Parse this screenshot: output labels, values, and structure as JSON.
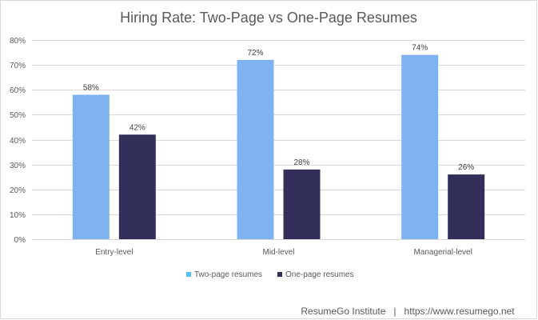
{
  "chart_data": {
    "type": "bar",
    "title": "Hiring Rate: Two-Page vs One-Page Resumes",
    "xlabel": "",
    "ylabel": "",
    "categories": [
      "Entry-level",
      "Mid-level",
      "Managerial-level"
    ],
    "series": [
      {
        "name": "Two-page resumes",
        "values": [
          58,
          72,
          74
        ],
        "labels": [
          "58%",
          "72%",
          "74%"
        ],
        "color": "#7FB2F0"
      },
      {
        "name": "One-page resumes",
        "values": [
          42,
          28,
          26
        ],
        "labels": [
          "42%",
          "28%",
          "26%"
        ],
        "color": "#32305A"
      }
    ],
    "ylim": [
      0,
      80
    ],
    "yticks": [
      0,
      10,
      20,
      30,
      40,
      50,
      60,
      70,
      80
    ],
    "ytick_labels": [
      "0%",
      "10%",
      "20%",
      "30%",
      "40%",
      "50%",
      "60%",
      "70%",
      "80%"
    ],
    "grid": true,
    "gridline_color": "#d9d9d9",
    "legend_position": "bottom",
    "legend_colors": [
      "#4FC3F7",
      "#32305A"
    ],
    "credit": "ResumeGo Institute   |   https://www.resumego.net"
  }
}
